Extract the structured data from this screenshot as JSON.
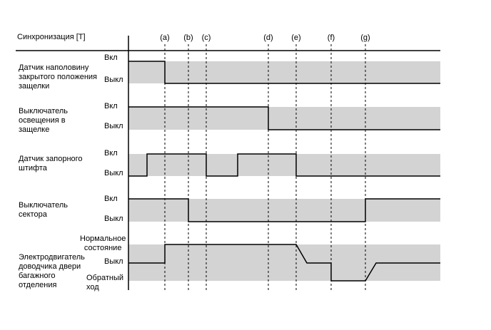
{
  "header": {
    "timing_label": "Синхронизация [T]"
  },
  "events": [
    "(a)",
    "(b)",
    "(c)",
    "(d)",
    "(e)",
    "(f)",
    "(g)"
  ],
  "signals": [
    {
      "label": "Датчик наполовину\nзакрытого положения\nзащелки",
      "on_label": "Вкл",
      "off_label": "Выкл"
    },
    {
      "label": "Выключатель\nосвещения в\nзащелке",
      "on_label": "Вкл",
      "off_label": "Выкл"
    },
    {
      "label": "Датчик запорного\nштифта",
      "on_label": "Вкл",
      "off_label": "Выкл"
    },
    {
      "label": "Выключатель\nсектора",
      "on_label": "Вкл",
      "off_label": "Выкл"
    },
    {
      "label": "Электродвигатель\nдоводчика двери\nбагажного\nотделения",
      "normal_label": "Нормальное\nсостояние",
      "off_label": "Выкл",
      "reverse_label": "Обратный\nход"
    }
  ],
  "colors": {
    "band": "#d3d3d3",
    "line": "#000000"
  }
}
